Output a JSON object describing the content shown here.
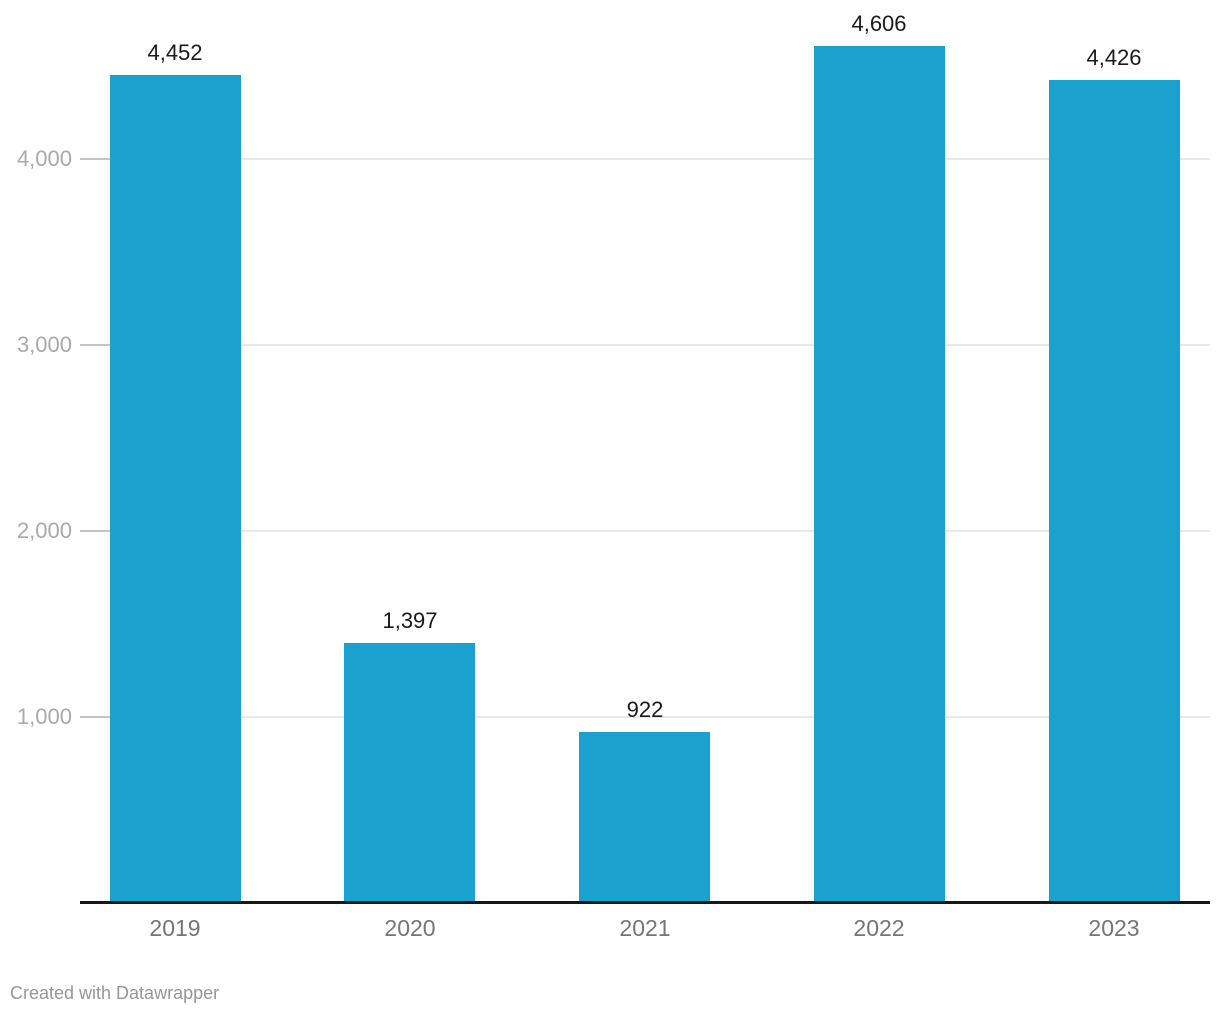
{
  "chart_data": {
    "type": "bar",
    "categories": [
      "2019",
      "2020",
      "2021",
      "2022",
      "2023"
    ],
    "values": [
      4452,
      1397,
      922,
      4606,
      4426
    ],
    "value_labels": [
      "4,452",
      "1,397",
      "922",
      "4,606",
      "4,426"
    ],
    "y_ticks": [
      {
        "value": 1000,
        "label": "1,000"
      },
      {
        "value": 2000,
        "label": "2,000"
      },
      {
        "value": 3000,
        "label": "3,000"
      },
      {
        "value": 4000,
        "label": "4,000"
      }
    ],
    "ylim": [
      0,
      4855
    ],
    "grid": true,
    "legend_position": "none",
    "title": "",
    "xlabel": "",
    "ylabel": "",
    "bar_color": "#1aa1cd",
    "colors": {
      "value_label": "#1a1a1a",
      "y_tick_label": "#a9a9a9",
      "category_label": "#757575",
      "gridline": "#e8e8e8",
      "tick": "#c4c4c4",
      "baseline": "#18181a"
    }
  },
  "footer": {
    "attribution": "Created with Datawrapper"
  }
}
